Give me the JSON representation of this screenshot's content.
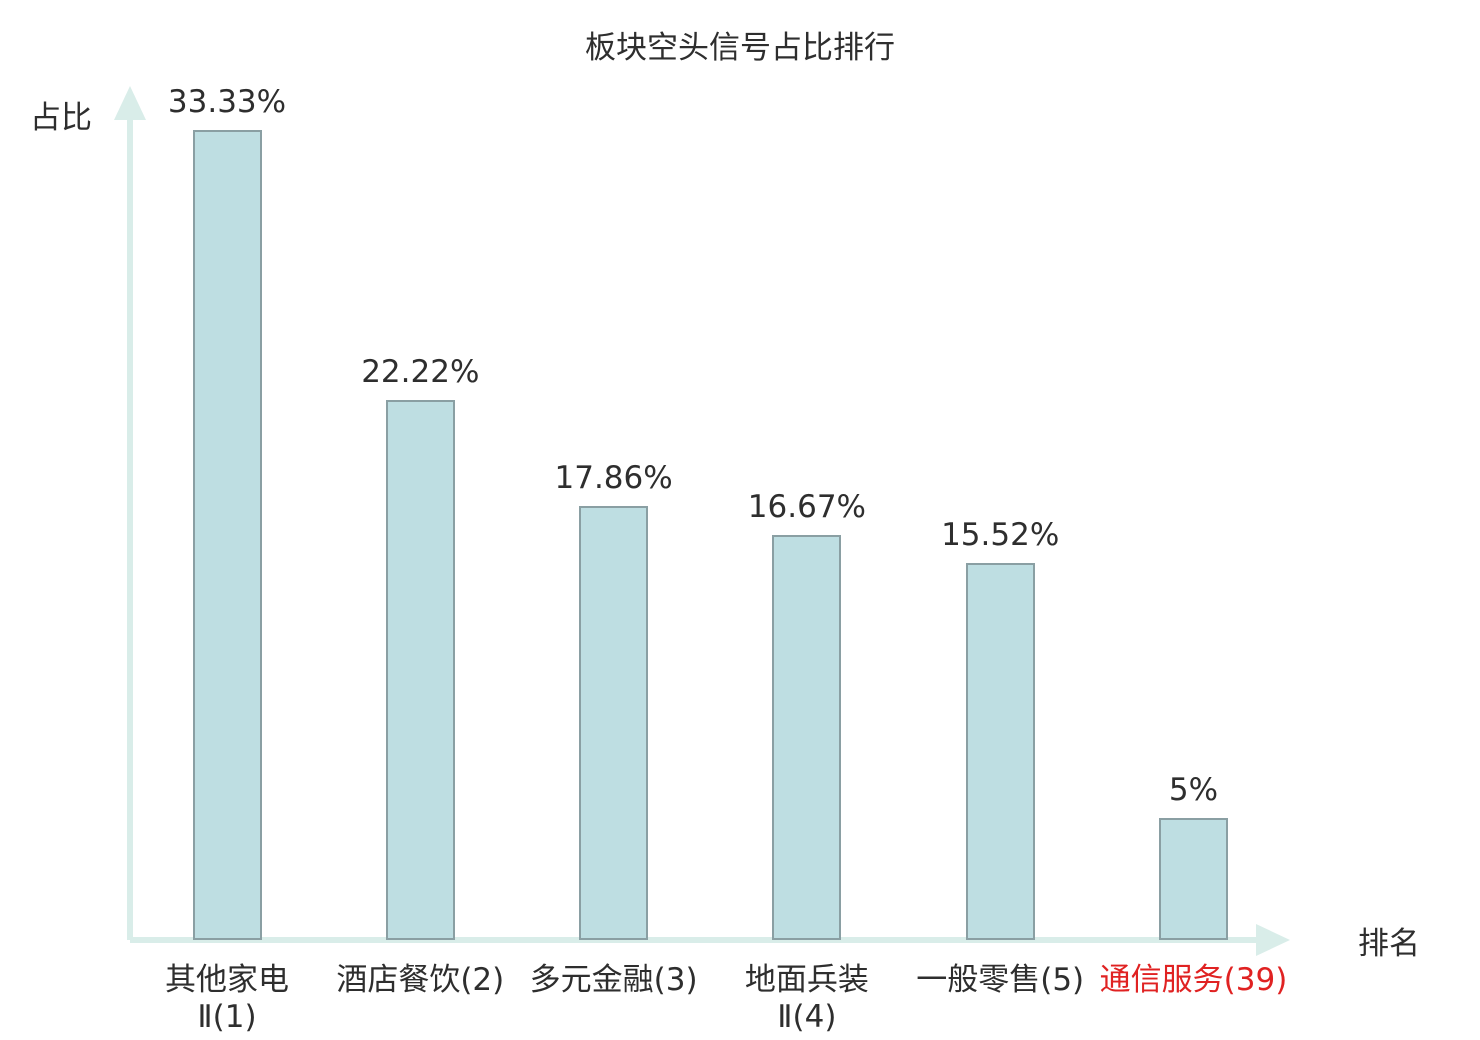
{
  "colors": {
    "background": "#ffffff",
    "axis": "#d9ede9",
    "bar_fill": "#bedee2",
    "bar_border": "#8a9fa3",
    "text": "#2e2e2e",
    "highlight": "#e02222"
  },
  "chart_data": {
    "type": "bar",
    "title": "板块空头信号占比排行",
    "xlabel": "排名",
    "ylabel": "占比",
    "categories": [
      "其他家电Ⅱ(1)",
      "酒店餐饮(2)",
      "多元金融(3)",
      "地面兵装Ⅱ(4)",
      "一般零售(5)",
      "通信服务(39)"
    ],
    "category_label_lines": [
      [
        "其他家电",
        "Ⅱ(1)"
      ],
      [
        "酒店餐饮(2)"
      ],
      [
        "多元金融(3)"
      ],
      [
        "地面兵装",
        "Ⅱ(4)"
      ],
      [
        "一般零售(5)"
      ],
      [
        "通信服务(39)"
      ]
    ],
    "values": [
      33.33,
      22.22,
      17.86,
      16.67,
      15.52,
      5
    ],
    "value_labels": [
      "33.33%",
      "22.22%",
      "17.86%",
      "16.67%",
      "15.52%",
      "5%"
    ],
    "highlighted_category_index": 5,
    "ylim": [
      0,
      34.5
    ],
    "grid": false,
    "legend": null
  }
}
